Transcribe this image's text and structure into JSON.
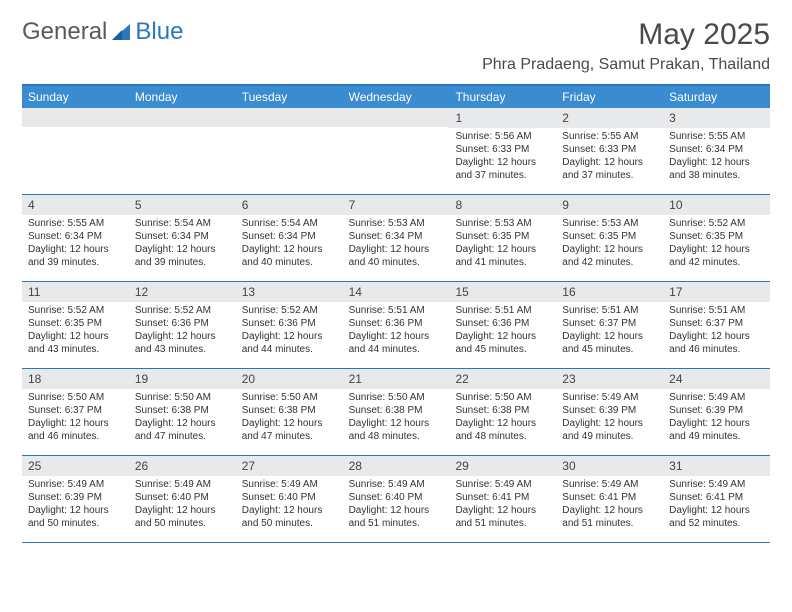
{
  "brand": {
    "part1": "General",
    "part2": "Blue"
  },
  "title": "May 2025",
  "location": "Phra Pradaeng, Samut Prakan, Thailand",
  "colors": {
    "header_bg": "#3b8bd0",
    "rule": "#2a77bd",
    "daynum_bg": "#e7e9eb",
    "text": "#333333",
    "title_text": "#4a4a4a"
  },
  "dow": [
    "Sunday",
    "Monday",
    "Tuesday",
    "Wednesday",
    "Thursday",
    "Friday",
    "Saturday"
  ],
  "weeks": [
    [
      null,
      null,
      null,
      null,
      {
        "n": "1",
        "sr": "Sunrise: 5:56 AM",
        "ss": "Sunset: 6:33 PM",
        "dl": "Daylight: 12 hours and 37 minutes."
      },
      {
        "n": "2",
        "sr": "Sunrise: 5:55 AM",
        "ss": "Sunset: 6:33 PM",
        "dl": "Daylight: 12 hours and 37 minutes."
      },
      {
        "n": "3",
        "sr": "Sunrise: 5:55 AM",
        "ss": "Sunset: 6:34 PM",
        "dl": "Daylight: 12 hours and 38 minutes."
      }
    ],
    [
      {
        "n": "4",
        "sr": "Sunrise: 5:55 AM",
        "ss": "Sunset: 6:34 PM",
        "dl": "Daylight: 12 hours and 39 minutes."
      },
      {
        "n": "5",
        "sr": "Sunrise: 5:54 AM",
        "ss": "Sunset: 6:34 PM",
        "dl": "Daylight: 12 hours and 39 minutes."
      },
      {
        "n": "6",
        "sr": "Sunrise: 5:54 AM",
        "ss": "Sunset: 6:34 PM",
        "dl": "Daylight: 12 hours and 40 minutes."
      },
      {
        "n": "7",
        "sr": "Sunrise: 5:53 AM",
        "ss": "Sunset: 6:34 PM",
        "dl": "Daylight: 12 hours and 40 minutes."
      },
      {
        "n": "8",
        "sr": "Sunrise: 5:53 AM",
        "ss": "Sunset: 6:35 PM",
        "dl": "Daylight: 12 hours and 41 minutes."
      },
      {
        "n": "9",
        "sr": "Sunrise: 5:53 AM",
        "ss": "Sunset: 6:35 PM",
        "dl": "Daylight: 12 hours and 42 minutes."
      },
      {
        "n": "10",
        "sr": "Sunrise: 5:52 AM",
        "ss": "Sunset: 6:35 PM",
        "dl": "Daylight: 12 hours and 42 minutes."
      }
    ],
    [
      {
        "n": "11",
        "sr": "Sunrise: 5:52 AM",
        "ss": "Sunset: 6:35 PM",
        "dl": "Daylight: 12 hours and 43 minutes."
      },
      {
        "n": "12",
        "sr": "Sunrise: 5:52 AM",
        "ss": "Sunset: 6:36 PM",
        "dl": "Daylight: 12 hours and 43 minutes."
      },
      {
        "n": "13",
        "sr": "Sunrise: 5:52 AM",
        "ss": "Sunset: 6:36 PM",
        "dl": "Daylight: 12 hours and 44 minutes."
      },
      {
        "n": "14",
        "sr": "Sunrise: 5:51 AM",
        "ss": "Sunset: 6:36 PM",
        "dl": "Daylight: 12 hours and 44 minutes."
      },
      {
        "n": "15",
        "sr": "Sunrise: 5:51 AM",
        "ss": "Sunset: 6:36 PM",
        "dl": "Daylight: 12 hours and 45 minutes."
      },
      {
        "n": "16",
        "sr": "Sunrise: 5:51 AM",
        "ss": "Sunset: 6:37 PM",
        "dl": "Daylight: 12 hours and 45 minutes."
      },
      {
        "n": "17",
        "sr": "Sunrise: 5:51 AM",
        "ss": "Sunset: 6:37 PM",
        "dl": "Daylight: 12 hours and 46 minutes."
      }
    ],
    [
      {
        "n": "18",
        "sr": "Sunrise: 5:50 AM",
        "ss": "Sunset: 6:37 PM",
        "dl": "Daylight: 12 hours and 46 minutes."
      },
      {
        "n": "19",
        "sr": "Sunrise: 5:50 AM",
        "ss": "Sunset: 6:38 PM",
        "dl": "Daylight: 12 hours and 47 minutes."
      },
      {
        "n": "20",
        "sr": "Sunrise: 5:50 AM",
        "ss": "Sunset: 6:38 PM",
        "dl": "Daylight: 12 hours and 47 minutes."
      },
      {
        "n": "21",
        "sr": "Sunrise: 5:50 AM",
        "ss": "Sunset: 6:38 PM",
        "dl": "Daylight: 12 hours and 48 minutes."
      },
      {
        "n": "22",
        "sr": "Sunrise: 5:50 AM",
        "ss": "Sunset: 6:38 PM",
        "dl": "Daylight: 12 hours and 48 minutes."
      },
      {
        "n": "23",
        "sr": "Sunrise: 5:49 AM",
        "ss": "Sunset: 6:39 PM",
        "dl": "Daylight: 12 hours and 49 minutes."
      },
      {
        "n": "24",
        "sr": "Sunrise: 5:49 AM",
        "ss": "Sunset: 6:39 PM",
        "dl": "Daylight: 12 hours and 49 minutes."
      }
    ],
    [
      {
        "n": "25",
        "sr": "Sunrise: 5:49 AM",
        "ss": "Sunset: 6:39 PM",
        "dl": "Daylight: 12 hours and 50 minutes."
      },
      {
        "n": "26",
        "sr": "Sunrise: 5:49 AM",
        "ss": "Sunset: 6:40 PM",
        "dl": "Daylight: 12 hours and 50 minutes."
      },
      {
        "n": "27",
        "sr": "Sunrise: 5:49 AM",
        "ss": "Sunset: 6:40 PM",
        "dl": "Daylight: 12 hours and 50 minutes."
      },
      {
        "n": "28",
        "sr": "Sunrise: 5:49 AM",
        "ss": "Sunset: 6:40 PM",
        "dl": "Daylight: 12 hours and 51 minutes."
      },
      {
        "n": "29",
        "sr": "Sunrise: 5:49 AM",
        "ss": "Sunset: 6:41 PM",
        "dl": "Daylight: 12 hours and 51 minutes."
      },
      {
        "n": "30",
        "sr": "Sunrise: 5:49 AM",
        "ss": "Sunset: 6:41 PM",
        "dl": "Daylight: 12 hours and 51 minutes."
      },
      {
        "n": "31",
        "sr": "Sunrise: 5:49 AM",
        "ss": "Sunset: 6:41 PM",
        "dl": "Daylight: 12 hours and 52 minutes."
      }
    ]
  ]
}
